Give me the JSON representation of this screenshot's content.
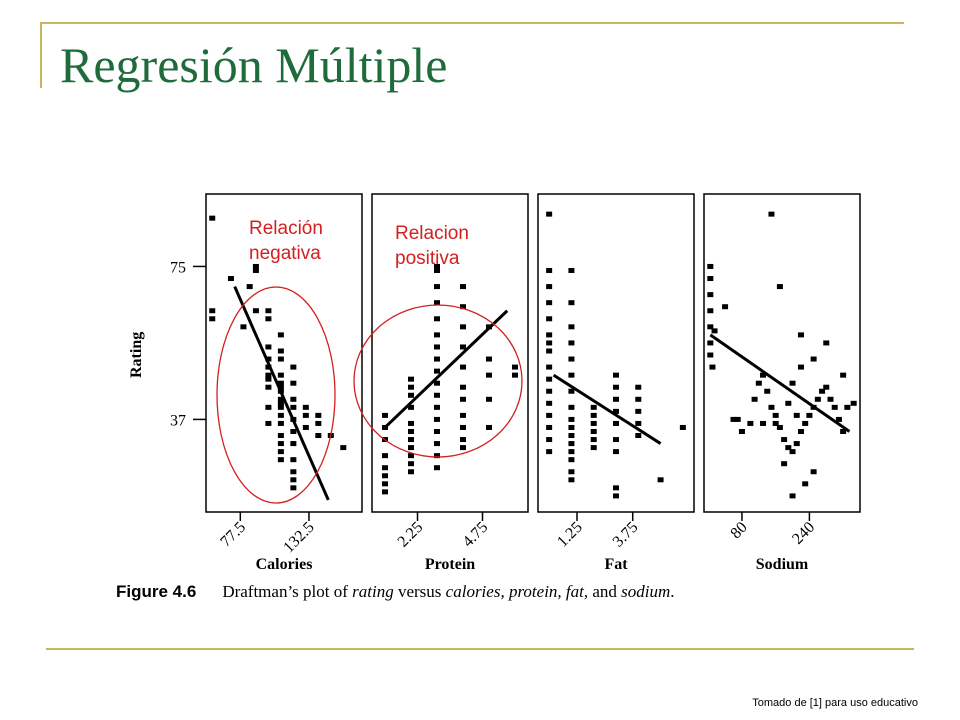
{
  "slide": {
    "title": "Regresión Múltiple",
    "credit": "Tomado de [1] para uso educativo",
    "accent_color": "#1e6b3c",
    "rule_color": "#c8b560"
  },
  "annotations": {
    "negative": [
      "Relación",
      "negativa"
    ],
    "positive": [
      "Relacion",
      "positiva"
    ],
    "color": "#d32020"
  },
  "figure": {
    "label": "Figure 4.6",
    "caption_parts": [
      {
        "text": "Draftman’s plot of ",
        "em": false
      },
      {
        "text": "rating",
        "em": true
      },
      {
        "text": " versus ",
        "em": false
      },
      {
        "text": "calories, protein, fat,",
        "em": true
      },
      {
        "text": " and ",
        "em": false
      },
      {
        "text": "sodium",
        "em": true
      },
      {
        "text": ".",
        "em": false
      }
    ]
  },
  "chart_data": {
    "type": "scatter",
    "ylabel": "Rating",
    "yticks": [
      37,
      75
    ],
    "ylim": [
      14,
      93
    ],
    "panels": [
      {
        "xlabel": "Calories",
        "xticks": [
          77.5,
          132.5
        ],
        "xlim": [
          50,
          175
        ],
        "points": [
          [
            55,
            87
          ],
          [
            55,
            64
          ],
          [
            55,
            62
          ],
          [
            70,
            72
          ],
          [
            90,
            75
          ],
          [
            90,
            74
          ],
          [
            90,
            64
          ],
          [
            100,
            64
          ],
          [
            100,
            62
          ],
          [
            100,
            55
          ],
          [
            100,
            52
          ],
          [
            100,
            50
          ],
          [
            100,
            47
          ],
          [
            100,
            45
          ],
          [
            100,
            40
          ],
          [
            100,
            36
          ],
          [
            100,
            48
          ],
          [
            110,
            58
          ],
          [
            110,
            54
          ],
          [
            110,
            52
          ],
          [
            110,
            48
          ],
          [
            110,
            46
          ],
          [
            110,
            44
          ],
          [
            110,
            42
          ],
          [
            110,
            40
          ],
          [
            110,
            38
          ],
          [
            110,
            36
          ],
          [
            110,
            33
          ],
          [
            110,
            31
          ],
          [
            110,
            29
          ],
          [
            110,
            27
          ],
          [
            110,
            45
          ],
          [
            110,
            41
          ],
          [
            120,
            50
          ],
          [
            120,
            46
          ],
          [
            120,
            42
          ],
          [
            120,
            40
          ],
          [
            120,
            37
          ],
          [
            120,
            34
          ],
          [
            120,
            31
          ],
          [
            120,
            27
          ],
          [
            120,
            24
          ],
          [
            120,
            22
          ],
          [
            120,
            20
          ],
          [
            130,
            40
          ],
          [
            130,
            38
          ],
          [
            130,
            35
          ],
          [
            140,
            38
          ],
          [
            140,
            36
          ],
          [
            140,
            33
          ],
          [
            150,
            33
          ],
          [
            160,
            30
          ],
          [
            80,
            60
          ],
          [
            85,
            70
          ]
        ],
        "trend": [
          [
            73,
            70
          ],
          [
            148,
            17
          ]
        ]
      },
      {
        "xlabel": "Protein",
        "xticks": [
          2.25,
          4.75
        ],
        "xlim": [
          0.5,
          6.5
        ],
        "points": [
          [
            1,
            21
          ],
          [
            1,
            19
          ],
          [
            1,
            23
          ],
          [
            1,
            25
          ],
          [
            1,
            28
          ],
          [
            1,
            32
          ],
          [
            1,
            35
          ],
          [
            2,
            40
          ],
          [
            2,
            36
          ],
          [
            2,
            34
          ],
          [
            2,
            32
          ],
          [
            2,
            30
          ],
          [
            2,
            28
          ],
          [
            2,
            26
          ],
          [
            2,
            24
          ],
          [
            2,
            47
          ],
          [
            2,
            45
          ],
          [
            2,
            43
          ],
          [
            3,
            25
          ],
          [
            3,
            28
          ],
          [
            3,
            31
          ],
          [
            3,
            34
          ],
          [
            3,
            37
          ],
          [
            3,
            40
          ],
          [
            3,
            43
          ],
          [
            3,
            46
          ],
          [
            3,
            49
          ],
          [
            3,
            52
          ],
          [
            3,
            55
          ],
          [
            3,
            58
          ],
          [
            3,
            62
          ],
          [
            3,
            66
          ],
          [
            3,
            70
          ],
          [
            3,
            75
          ],
          [
            3,
            74
          ],
          [
            4,
            30
          ],
          [
            4,
            32
          ],
          [
            4,
            35
          ],
          [
            4,
            38
          ],
          [
            4,
            42
          ],
          [
            4,
            45
          ],
          [
            4,
            50
          ],
          [
            4,
            55
          ],
          [
            4,
            60
          ],
          [
            4,
            65
          ],
          [
            4,
            70
          ],
          [
            5,
            52
          ],
          [
            5,
            48
          ],
          [
            5,
            42
          ],
          [
            5,
            35
          ],
          [
            5,
            60
          ],
          [
            6,
            50
          ],
          [
            6,
            48
          ],
          [
            1,
            38
          ]
        ],
        "trend": [
          [
            1,
            35
          ],
          [
            5.7,
            64
          ]
        ]
      },
      {
        "xlabel": "Fat",
        "xticks": [
          1.25,
          3.75
        ],
        "xlim": [
          -0.5,
          6.5
        ],
        "points": [
          [
            0,
            88
          ],
          [
            0,
            74
          ],
          [
            0,
            70
          ],
          [
            0,
            66
          ],
          [
            0,
            62
          ],
          [
            0,
            58
          ],
          [
            0,
            54
          ],
          [
            0,
            50
          ],
          [
            0,
            47
          ],
          [
            0,
            44
          ],
          [
            0,
            41
          ],
          [
            0,
            38
          ],
          [
            0,
            35
          ],
          [
            0,
            32
          ],
          [
            0,
            29
          ],
          [
            1,
            74
          ],
          [
            1,
            66
          ],
          [
            1,
            60
          ],
          [
            1,
            56
          ],
          [
            1,
            52
          ],
          [
            1,
            48
          ],
          [
            1,
            44
          ],
          [
            1,
            40
          ],
          [
            1,
            37
          ],
          [
            1,
            35
          ],
          [
            1,
            31
          ],
          [
            1,
            29
          ],
          [
            1,
            27
          ],
          [
            1,
            24
          ],
          [
            1,
            22
          ],
          [
            2,
            40
          ],
          [
            2,
            38
          ],
          [
            2,
            36
          ],
          [
            2,
            34
          ],
          [
            2,
            32
          ],
          [
            2,
            30
          ],
          [
            3,
            48
          ],
          [
            3,
            45
          ],
          [
            3,
            42
          ],
          [
            3,
            39
          ],
          [
            3,
            36
          ],
          [
            3,
            32
          ],
          [
            3,
            29
          ],
          [
            3,
            20
          ],
          [
            3,
            18
          ],
          [
            4,
            45
          ],
          [
            4,
            42
          ],
          [
            4,
            39
          ],
          [
            4,
            36
          ],
          [
            4,
            33
          ],
          [
            5,
            22
          ],
          [
            6,
            35
          ],
          [
            1,
            33
          ],
          [
            0,
            56
          ]
        ],
        "trend": [
          [
            0.2,
            48
          ],
          [
            5,
            31
          ]
        ]
      },
      {
        "xlabel": "Sodium",
        "xticks": [
          80,
          240
        ],
        "xlim": [
          -10,
          360
        ],
        "points": [
          [
            5,
            75
          ],
          [
            5,
            72
          ],
          [
            5,
            68
          ],
          [
            5,
            64
          ],
          [
            5,
            60
          ],
          [
            5,
            56
          ],
          [
            5,
            53
          ],
          [
            10,
            50
          ],
          [
            15,
            59
          ],
          [
            40,
            65
          ],
          [
            80,
            34
          ],
          [
            70,
            37
          ],
          [
            60,
            37
          ],
          [
            100,
            36
          ],
          [
            110,
            42
          ],
          [
            120,
            46
          ],
          [
            130,
            48
          ],
          [
            140,
            44
          ],
          [
            150,
            40
          ],
          [
            160,
            38
          ],
          [
            170,
            35
          ],
          [
            180,
            32
          ],
          [
            190,
            30
          ],
          [
            200,
            29
          ],
          [
            210,
            31
          ],
          [
            220,
            34
          ],
          [
            230,
            36
          ],
          [
            240,
            38
          ],
          [
            250,
            40
          ],
          [
            260,
            42
          ],
          [
            270,
            44
          ],
          [
            280,
            45
          ],
          [
            290,
            42
          ],
          [
            300,
            40
          ],
          [
            310,
            37
          ],
          [
            320,
            34
          ],
          [
            330,
            40
          ],
          [
            170,
            70
          ],
          [
            220,
            58
          ],
          [
            280,
            56
          ],
          [
            320,
            48
          ],
          [
            345,
            41
          ],
          [
            150,
            88
          ],
          [
            200,
            18
          ],
          [
            230,
            21
          ],
          [
            250,
            24
          ],
          [
            180,
            26
          ],
          [
            160,
            36
          ],
          [
            130,
            36
          ],
          [
            220,
            50
          ],
          [
            200,
            46
          ],
          [
            250,
            52
          ],
          [
            190,
            41
          ],
          [
            210,
            38
          ]
        ],
        "trend": [
          [
            5,
            58
          ],
          [
            335,
            34
          ]
        ]
      }
    ]
  }
}
